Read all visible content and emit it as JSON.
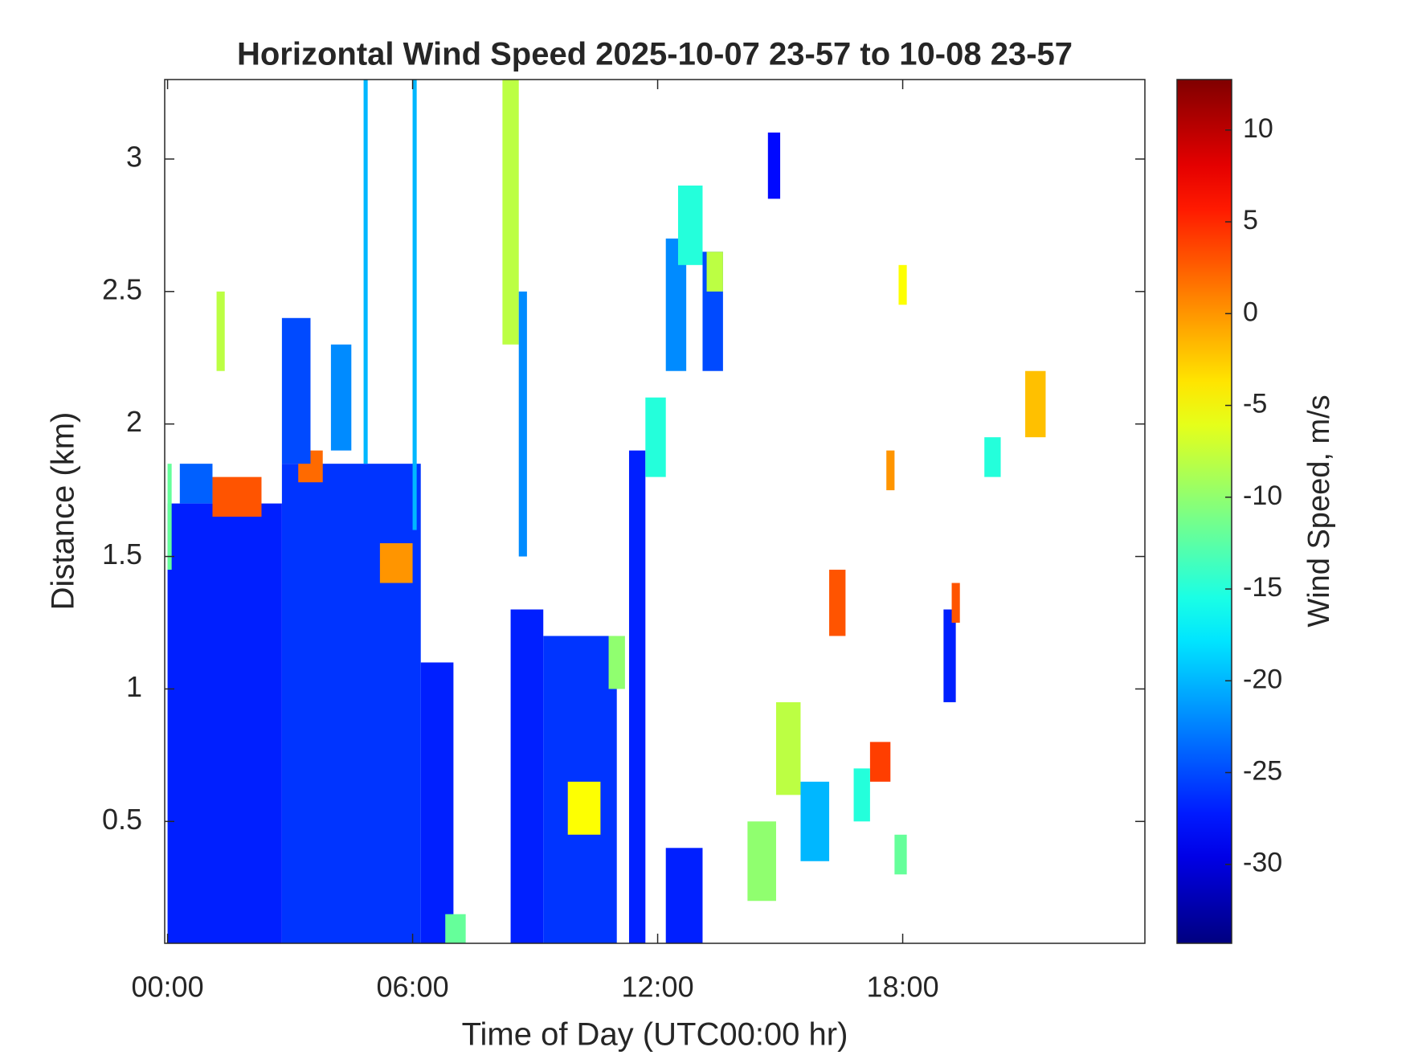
{
  "chart_data": {
    "type": "heatmap",
    "title": "Horizontal Wind Speed 2025-10-07 23-57 to 10-08 23-57",
    "x_label": "Time of Day (UTC00:00 hr)",
    "y_label": "Distance (km)",
    "colorbar_label": "Wind Speed, m/s",
    "colormap": "jet",
    "xlim": [
      -0.07,
      23.93
    ],
    "ylim": [
      0.04,
      3.3
    ],
    "clim": [
      -34.3,
      12.75
    ],
    "xticks": [
      {
        "value": 0,
        "label": "00:00"
      },
      {
        "value": 6,
        "label": "06:00"
      },
      {
        "value": 12,
        "label": "12:00"
      },
      {
        "value": 18,
        "label": "18:00"
      }
    ],
    "yticks": [
      0.5,
      1,
      1.5,
      2,
      2.5,
      3
    ],
    "cticks": [
      -30,
      -25,
      -20,
      -15,
      -10,
      -5,
      0,
      5,
      10
    ],
    "cells": [
      {
        "x": [
          0,
          2.8
        ],
        "y": [
          0.04,
          1.7
        ],
        "value": -27
      },
      {
        "x": [
          2.8,
          6.2
        ],
        "y": [
          0.04,
          1.85
        ],
        "value": -26
      },
      {
        "x": [
          6.2,
          7
        ],
        "y": [
          0.04,
          1.1
        ],
        "value": -27
      },
      {
        "x": [
          1.1,
          2.3
        ],
        "y": [
          1.65,
          1.8
        ],
        "value": 3
      },
      {
        "x": [
          0.3,
          1.1
        ],
        "y": [
          1.7,
          1.85
        ],
        "value": -24
      },
      {
        "x": [
          3.2,
          3.8
        ],
        "y": [
          1.78,
          1.9
        ],
        "value": 2
      },
      {
        "x": [
          5.2,
          6
        ],
        "y": [
          1.4,
          1.55
        ],
        "value": 0
      },
      {
        "x": [
          1.2,
          1.4
        ],
        "y": [
          2.2,
          2.5
        ],
        "value": -8
      },
      {
        "x": [
          2.8,
          3.5
        ],
        "y": [
          1.85,
          2.4
        ],
        "value": -25
      },
      {
        "x": [
          4,
          4.5
        ],
        "y": [
          1.9,
          2.3
        ],
        "value": -22
      },
      {
        "x": [
          4.8,
          4.9
        ],
        "y": [
          1.85,
          3.3
        ],
        "value": -20
      },
      {
        "x": [
          6,
          6.1
        ],
        "y": [
          1.6,
          3.3
        ],
        "value": -20
      },
      {
        "x": [
          8.2,
          8.6
        ],
        "y": [
          2.3,
          3.3
        ],
        "value": -8
      },
      {
        "x": [
          8.6,
          8.8
        ],
        "y": [
          1.5,
          2.5
        ],
        "value": -22
      },
      {
        "x": [
          8.4,
          9.2
        ],
        "y": [
          0.04,
          1.3
        ],
        "value": -27
      },
      {
        "x": [
          9.2,
          11
        ],
        "y": [
          0.04,
          1.2
        ],
        "value": -26
      },
      {
        "x": [
          9.8,
          10.6
        ],
        "y": [
          0.45,
          0.65
        ],
        "value": -5
      },
      {
        "x": [
          10.8,
          11.2
        ],
        "y": [
          1,
          1.2
        ],
        "value": -10
      },
      {
        "x": [
          11.3,
          11.7
        ],
        "y": [
          0.04,
          1.9
        ],
        "value": -27
      },
      {
        "x": [
          11.7,
          12.2
        ],
        "y": [
          1.8,
          2.1
        ],
        "value": -15
      },
      {
        "x": [
          12.2,
          12.7
        ],
        "y": [
          2.2,
          2.7
        ],
        "value": -22
      },
      {
        "x": [
          12.5,
          13.1
        ],
        "y": [
          2.6,
          2.9
        ],
        "value": -15
      },
      {
        "x": [
          13.1,
          13.6
        ],
        "y": [
          2.2,
          2.65
        ],
        "value": -25
      },
      {
        "x": [
          13.2,
          13.6
        ],
        "y": [
          2.5,
          2.65
        ],
        "value": -8
      },
      {
        "x": [
          12.2,
          13.1
        ],
        "y": [
          0.04,
          0.4
        ],
        "value": -27
      },
      {
        "x": [
          14.2,
          14.9
        ],
        "y": [
          0.2,
          0.5
        ],
        "value": -10
      },
      {
        "x": [
          14.9,
          15.5
        ],
        "y": [
          0.6,
          0.95
        ],
        "value": -8
      },
      {
        "x": [
          15.5,
          16.2
        ],
        "y": [
          0.35,
          0.65
        ],
        "value": -20
      },
      {
        "x": [
          16.2,
          16.6
        ],
        "y": [
          1.2,
          1.45
        ],
        "value": 3
      },
      {
        "x": [
          17.2,
          17.7
        ],
        "y": [
          0.65,
          0.8
        ],
        "value": 4
      },
      {
        "x": [
          16.8,
          17.2
        ],
        "y": [
          0.5,
          0.7
        ],
        "value": -15
      },
      {
        "x": [
          17.9,
          18.1
        ],
        "y": [
          2.45,
          2.6
        ],
        "value": -5
      },
      {
        "x": [
          17.6,
          17.8
        ],
        "y": [
          1.75,
          1.9
        ],
        "value": 0
      },
      {
        "x": [
          19,
          19.3
        ],
        "y": [
          0.95,
          1.3
        ],
        "value": -27
      },
      {
        "x": [
          19.2,
          19.4
        ],
        "y": [
          1.25,
          1.4
        ],
        "value": 3
      },
      {
        "x": [
          20,
          20.4
        ],
        "y": [
          1.8,
          1.95
        ],
        "value": -15
      },
      {
        "x": [
          21,
          21.5
        ],
        "y": [
          1.95,
          2.2
        ],
        "value": -2
      },
      {
        "x": [
          17.8,
          18.1
        ],
        "y": [
          0.3,
          0.45
        ],
        "value": -12
      },
      {
        "x": [
          6.8,
          7.3
        ],
        "y": [
          0.04,
          0.15
        ],
        "value": -12
      },
      {
        "x": [
          14.7,
          15
        ],
        "y": [
          2.85,
          3.1
        ],
        "value": -28
      },
      {
        "x": [
          0,
          0.1
        ],
        "y": [
          1.45,
          1.85
        ],
        "value": -12
      }
    ]
  }
}
